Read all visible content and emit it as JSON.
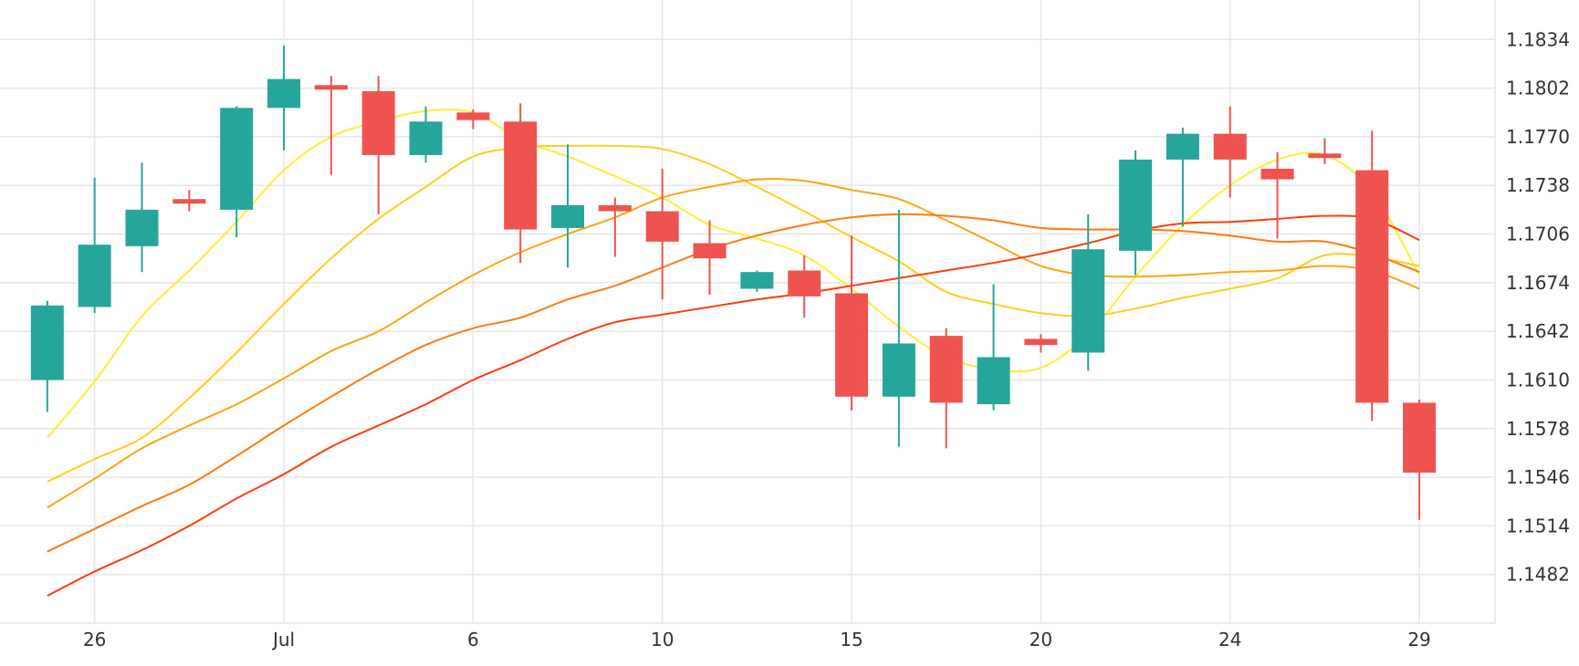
{
  "chart_data": {
    "type": "candlestick",
    "x_tick_labels": [
      {
        "label": "26",
        "day": 1
      },
      {
        "label": "Jul",
        "day": 5
      },
      {
        "label": "6",
        "day": 9
      },
      {
        "label": "10",
        "day": 13
      },
      {
        "label": "15",
        "day": 17
      },
      {
        "label": "20",
        "day": 21
      },
      {
        "label": "24",
        "day": 25
      },
      {
        "label": "29",
        "day": 29
      }
    ],
    "y_ticks": [
      "1.1834",
      "1.1802",
      "1.1770",
      "1.1738",
      "1.1706",
      "1.1674",
      "1.1642",
      "1.1610",
      "1.1578",
      "1.1546",
      "1.1514",
      "1.1482"
    ],
    "ylim": [
      1.145,
      1.186
    ],
    "xlim": [
      -1.0,
      30.6
    ],
    "y_axis_position": "right",
    "grid": true,
    "colors": {
      "up": "#26a69a",
      "down": "#ef5350",
      "grid": "#e6e6e6",
      "text": "#333333"
    },
    "candles": [
      {
        "day": 0,
        "open": 1.161,
        "high": 1.1662,
        "low": 1.1589,
        "close": 1.1659
      },
      {
        "day": 1,
        "open": 1.1658,
        "high": 1.1743,
        "low": 1.1654,
        "close": 1.1699
      },
      {
        "day": 2,
        "open": 1.1698,
        "high": 1.1753,
        "low": 1.1681,
        "close": 1.1722
      },
      {
        "day": 3,
        "open": 1.1729,
        "high": 1.1735,
        "low": 1.1721,
        "close": 1.1726
      },
      {
        "day": 4,
        "open": 1.1722,
        "high": 1.179,
        "low": 1.1704,
        "close": 1.1789
      },
      {
        "day": 5,
        "open": 1.1789,
        "high": 1.183,
        "low": 1.1761,
        "close": 1.1808
      },
      {
        "day": 6,
        "open": 1.1804,
        "high": 1.181,
        "low": 1.1745,
        "close": 1.1801
      },
      {
        "day": 7,
        "open": 1.18,
        "high": 1.181,
        "low": 1.1719,
        "close": 1.1758
      },
      {
        "day": 8,
        "open": 1.1758,
        "high": 1.179,
        "low": 1.1753,
        "close": 1.178
      },
      {
        "day": 9,
        "open": 1.1786,
        "high": 1.1788,
        "low": 1.1775,
        "close": 1.1781
      },
      {
        "day": 10,
        "open": 1.178,
        "high": 1.1792,
        "low": 1.1687,
        "close": 1.1709
      },
      {
        "day": 11,
        "open": 1.171,
        "high": 1.1765,
        "low": 1.1684,
        "close": 1.1725
      },
      {
        "day": 12,
        "open": 1.1725,
        "high": 1.173,
        "low": 1.1691,
        "close": 1.1721
      },
      {
        "day": 13,
        "open": 1.1721,
        "high": 1.1749,
        "low": 1.1663,
        "close": 1.1701
      },
      {
        "day": 14,
        "open": 1.17,
        "high": 1.1715,
        "low": 1.1666,
        "close": 1.169
      },
      {
        "day": 15,
        "open": 1.167,
        "high": 1.1682,
        "low": 1.1668,
        "close": 1.1681
      },
      {
        "day": 16,
        "open": 1.1682,
        "high": 1.1692,
        "low": 1.1651,
        "close": 1.1665
      },
      {
        "day": 17,
        "open": 1.1667,
        "high": 1.1705,
        "low": 1.159,
        "close": 1.1599
      },
      {
        "day": 18,
        "open": 1.1599,
        "high": 1.1722,
        "low": 1.1566,
        "close": 1.1634
      },
      {
        "day": 19,
        "open": 1.1639,
        "high": 1.1644,
        "low": 1.1565,
        "close": 1.1595
      },
      {
        "day": 20,
        "open": 1.1594,
        "high": 1.1673,
        "low": 1.159,
        "close": 1.1625
      },
      {
        "day": 21,
        "open": 1.1637,
        "high": 1.164,
        "low": 1.1628,
        "close": 1.1633
      },
      {
        "day": 22,
        "open": 1.1628,
        "high": 1.1719,
        "low": 1.1616,
        "close": 1.1696
      },
      {
        "day": 23,
        "open": 1.1695,
        "high": 1.1761,
        "low": 1.1679,
        "close": 1.1755
      },
      {
        "day": 24,
        "open": 1.1755,
        "high": 1.1776,
        "low": 1.1711,
        "close": 1.1772
      },
      {
        "day": 25,
        "open": 1.1772,
        "high": 1.179,
        "low": 1.173,
        "close": 1.1755
      },
      {
        "day": 26,
        "open": 1.1749,
        "high": 1.176,
        "low": 1.1703,
        "close": 1.1742
      },
      {
        "day": 27,
        "open": 1.1759,
        "high": 1.1769,
        "low": 1.1752,
        "close": 1.1756
      },
      {
        "day": 28,
        "open": 1.1748,
        "high": 1.1774,
        "low": 1.1583,
        "close": 1.1595
      },
      {
        "day": 29,
        "open": 1.1595,
        "high": 1.1597,
        "low": 1.1518,
        "close": 1.1549
      }
    ],
    "moving_averages": [
      {
        "color": "#ffef33",
        "values": [
          [
            0,
            1.1572
          ],
          [
            1,
            1.1609
          ],
          [
            2,
            1.1652
          ],
          [
            3,
            1.1682
          ],
          [
            4,
            1.1714
          ],
          [
            5,
            1.1748
          ],
          [
            6,
            1.177
          ],
          [
            7,
            1.178
          ],
          [
            8,
            1.1787
          ],
          [
            9,
            1.1786
          ],
          [
            10,
            1.1768
          ],
          [
            11,
            1.1757
          ],
          [
            12,
            1.1744
          ],
          [
            13,
            1.173
          ],
          [
            14,
            1.1712
          ],
          [
            15,
            1.1703
          ],
          [
            16,
            1.1692
          ],
          [
            17,
            1.167
          ],
          [
            18,
            1.1645
          ],
          [
            19,
            1.1625
          ],
          [
            20,
            1.1617
          ],
          [
            21,
            1.1618
          ],
          [
            22,
            1.164
          ],
          [
            23,
            1.1678
          ],
          [
            24,
            1.1712
          ],
          [
            25,
            1.1738
          ],
          [
            26,
            1.1755
          ],
          [
            27,
            1.1758
          ],
          [
            28,
            1.1734
          ],
          [
            29,
            1.1679
          ]
        ]
      },
      {
        "color": "#ffce1f",
        "values": [
          [
            0,
            1.1543
          ],
          [
            1,
            1.1558
          ],
          [
            2,
            1.1572
          ],
          [
            3,
            1.1598
          ],
          [
            4,
            1.1628
          ],
          [
            5,
            1.166
          ],
          [
            6,
            1.169
          ],
          [
            7,
            1.1716
          ],
          [
            8,
            1.1737
          ],
          [
            9,
            1.1757
          ],
          [
            10,
            1.1763
          ],
          [
            11,
            1.1764
          ],
          [
            12,
            1.1764
          ],
          [
            13,
            1.1762
          ],
          [
            14,
            1.1752
          ],
          [
            15,
            1.1737
          ],
          [
            16,
            1.1721
          ],
          [
            17,
            1.1704
          ],
          [
            18,
            1.1688
          ],
          [
            19,
            1.1668
          ],
          [
            20,
            1.166
          ],
          [
            21,
            1.1654
          ],
          [
            22,
            1.1652
          ],
          [
            23,
            1.1657
          ],
          [
            24,
            1.1664
          ],
          [
            25,
            1.167
          ],
          [
            26,
            1.1677
          ],
          [
            27,
            1.1692
          ],
          [
            28,
            1.1691
          ],
          [
            29,
            1.1685
          ]
        ]
      },
      {
        "color": "#ffa514",
        "values": [
          [
            0,
            1.1526
          ],
          [
            1,
            1.1545
          ],
          [
            2,
            1.1565
          ],
          [
            3,
            1.158
          ],
          [
            4,
            1.1594
          ],
          [
            5,
            1.1611
          ],
          [
            6,
            1.1629
          ],
          [
            7,
            1.1642
          ],
          [
            8,
            1.1661
          ],
          [
            9,
            1.1679
          ],
          [
            10,
            1.1694
          ],
          [
            11,
            1.1706
          ],
          [
            12,
            1.1717
          ],
          [
            13,
            1.173
          ],
          [
            14,
            1.1737
          ],
          [
            15,
            1.1742
          ],
          [
            16,
            1.1741
          ],
          [
            17,
            1.1735
          ],
          [
            18,
            1.1729
          ],
          [
            19,
            1.1715
          ],
          [
            20,
            1.17
          ],
          [
            21,
            1.1685
          ],
          [
            22,
            1.1679
          ],
          [
            23,
            1.1678
          ],
          [
            24,
            1.1679
          ],
          [
            25,
            1.1681
          ],
          [
            26,
            1.1682
          ],
          [
            27,
            1.1685
          ],
          [
            28,
            1.1682
          ],
          [
            29,
            1.167
          ]
        ]
      },
      {
        "color": "#ff7a0f",
        "values": [
          [
            0,
            1.1497
          ],
          [
            1,
            1.1512
          ],
          [
            2,
            1.1527
          ],
          [
            3,
            1.1541
          ],
          [
            4,
            1.156
          ],
          [
            5,
            1.158
          ],
          [
            6,
            1.1599
          ],
          [
            7,
            1.1617
          ],
          [
            8,
            1.1633
          ],
          [
            9,
            1.1644
          ],
          [
            10,
            1.1651
          ],
          [
            11,
            1.1663
          ],
          [
            12,
            1.1672
          ],
          [
            13,
            1.1684
          ],
          [
            14,
            1.1696
          ],
          [
            15,
            1.1705
          ],
          [
            16,
            1.1712
          ],
          [
            17,
            1.1717
          ],
          [
            18,
            1.1719
          ],
          [
            19,
            1.1718
          ],
          [
            20,
            1.1715
          ],
          [
            21,
            1.171
          ],
          [
            22,
            1.1709
          ],
          [
            23,
            1.1709
          ],
          [
            24,
            1.1708
          ],
          [
            25,
            1.1705
          ],
          [
            26,
            1.1701
          ],
          [
            27,
            1.1701
          ],
          [
            28,
            1.1693
          ],
          [
            29,
            1.1681
          ]
        ]
      },
      {
        "color": "#ff3d0a",
        "values": [
          [
            0,
            1.1468
          ],
          [
            1,
            1.1484
          ],
          [
            2,
            1.1498
          ],
          [
            3,
            1.1514
          ],
          [
            4,
            1.1532
          ],
          [
            5,
            1.1548
          ],
          [
            6,
            1.1566
          ],
          [
            7,
            1.158
          ],
          [
            8,
            1.1594
          ],
          [
            9,
            1.161
          ],
          [
            10,
            1.1623
          ],
          [
            11,
            1.1637
          ],
          [
            12,
            1.1648
          ],
          [
            13,
            1.1653
          ],
          [
            14,
            1.1658
          ],
          [
            15,
            1.1663
          ],
          [
            16,
            1.1667
          ],
          [
            17,
            1.1672
          ],
          [
            18,
            1.1677
          ],
          [
            19,
            1.1682
          ],
          [
            20,
            1.1687
          ],
          [
            21,
            1.1693
          ],
          [
            22,
            1.17
          ],
          [
            23,
            1.1708
          ],
          [
            24,
            1.1713
          ],
          [
            25,
            1.1714
          ],
          [
            26,
            1.1716
          ],
          [
            27,
            1.1718
          ],
          [
            28,
            1.1716
          ],
          [
            29,
            1.1702
          ]
        ]
      }
    ]
  }
}
